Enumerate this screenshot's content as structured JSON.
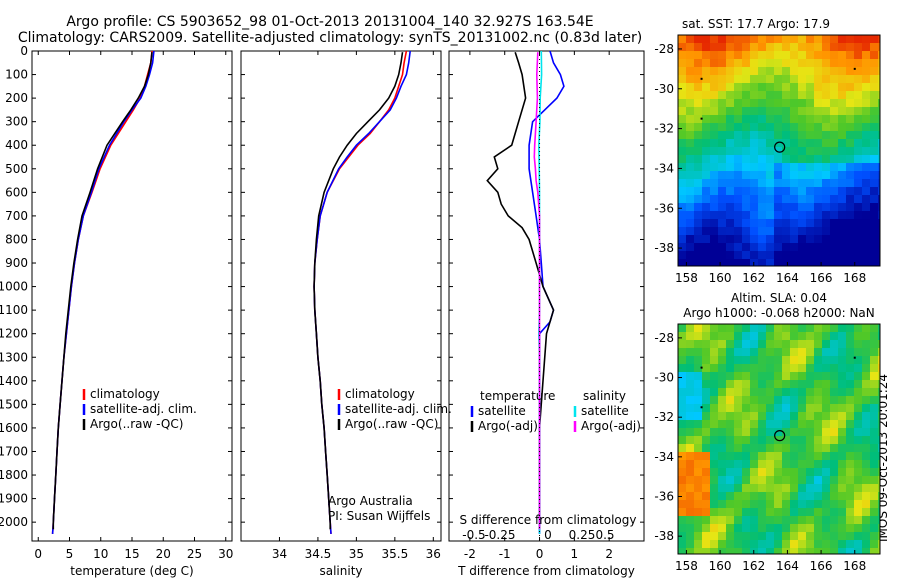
{
  "title_line1": "Argo profile: CS 5903652_98 01-Oct-2013 20131004_140 32.927S 163.54E",
  "title_line2": "Climatology: CARS2009. Satellite-adjusted climatology: synTS_20131002.nc (0.83d later)",
  "stamp": "IMOS 09-Oct-2013 20:01:24",
  "colors": {
    "climatology": "#ff0000",
    "satellite": "#0000ff",
    "argo": "#000000",
    "satellite_salinity": "#00e5ee",
    "argo_salinity_diff": "#ff00ff"
  },
  "chart_data": [
    {
      "type": "line",
      "name": "temperature-profile",
      "xlabel": "temperature (deg C)",
      "xlim": [
        -1,
        31
      ],
      "xticks": [
        0,
        5,
        10,
        15,
        20,
        25,
        30
      ],
      "ylim": [
        2080,
        0
      ],
      "yticks": [
        0,
        100,
        200,
        300,
        400,
        500,
        600,
        700,
        800,
        900,
        1000,
        1100,
        1200,
        1300,
        1400,
        1500,
        1600,
        1700,
        1800,
        1900,
        2000
      ],
      "legend": {
        "position": "lower-center",
        "entries": [
          "climatology",
          "satellite-adj. clim.",
          "Argo(..raw -QC)"
        ]
      },
      "series": [
        {
          "name": "climatology",
          "color": "#ff0000",
          "depth": [
            0,
            50,
            100,
            150,
            200,
            250,
            300,
            400,
            500,
            600,
            700,
            800,
            900,
            1000,
            1100,
            1200,
            1300,
            1400,
            1500,
            1600,
            1700,
            1800,
            1900,
            2000,
            2050
          ],
          "values": [
            18.2,
            18,
            17.5,
            17,
            16.3,
            15.2,
            14,
            11.6,
            9.9,
            8.6,
            7.2,
            6.4,
            5.8,
            5.3,
            4.9,
            4.5,
            4.1,
            3.8,
            3.5,
            3.2,
            3,
            2.8,
            2.6,
            2.4,
            2.3
          ]
        },
        {
          "name": "satellite-adj. clim.",
          "color": "#0000ff",
          "depth": [
            0,
            50,
            100,
            150,
            200,
            250,
            300,
            400,
            500,
            600,
            700,
            800,
            900,
            1000,
            1100,
            1200,
            1300,
            1400,
            1500,
            1600,
            1700,
            1800,
            1900,
            2000,
            2050
          ],
          "values": [
            18.5,
            18.3,
            17.8,
            17.2,
            16.4,
            15,
            13.7,
            11.4,
            9.7,
            8.5,
            7.2,
            6.4,
            5.8,
            5.3,
            4.9,
            4.5,
            4.1,
            3.8,
            3.5,
            3.2,
            3,
            2.8,
            2.6,
            2.4,
            2.3
          ]
        },
        {
          "name": "Argo(..raw -QC)",
          "color": "#000000",
          "depth": [
            5,
            50,
            100,
            150,
            200,
            250,
            300,
            400,
            500,
            600,
            700,
            800,
            900,
            1000,
            1100,
            1200,
            1300,
            1400,
            1500,
            1600,
            1700,
            1800,
            1900,
            2000,
            2030
          ],
          "values": [
            18.2,
            18,
            17.6,
            17,
            16,
            14.8,
            13.5,
            11,
            9.5,
            8.3,
            7,
            6.3,
            5.7,
            5.2,
            4.8,
            4.4,
            4.1,
            3.8,
            3.5,
            3.2,
            3,
            2.8,
            2.6,
            2.4,
            2.4
          ]
        }
      ]
    },
    {
      "type": "line",
      "name": "salinity-profile",
      "xlabel": "salinity",
      "xlim": [
        33.5,
        36.1
      ],
      "xticks": [
        34,
        34.5,
        35,
        35.5,
        36
      ],
      "ylim": [
        2080,
        0
      ],
      "legend": {
        "position": "lower-center",
        "entries": [
          "climatology",
          "satellite-adj. clim.",
          "Argo(..raw -QC)"
        ]
      },
      "annotation_line1": "Argo Australia",
      "annotation_line2": "PI: Susan Wijffels",
      "series": [
        {
          "name": "climatology",
          "color": "#ff0000",
          "depth": [
            0,
            50,
            100,
            150,
            200,
            250,
            300,
            350,
            400,
            450,
            500,
            600,
            700,
            800,
            900,
            1000,
            1100,
            1200,
            1300,
            1400,
            1500,
            1600,
            1700,
            1800,
            1900,
            2000,
            2050
          ],
          "values": [
            35.65,
            35.62,
            35.6,
            35.55,
            35.5,
            35.42,
            35.3,
            35.18,
            35.02,
            34.9,
            34.78,
            34.62,
            34.53,
            34.49,
            34.46,
            34.45,
            34.46,
            34.48,
            34.5,
            34.53,
            34.55,
            34.58,
            34.6,
            34.62,
            34.64,
            34.66,
            34.67
          ]
        },
        {
          "name": "satellite-adj. clim.",
          "color": "#0000ff",
          "depth": [
            0,
            50,
            100,
            150,
            200,
            250,
            300,
            350,
            400,
            450,
            500,
            600,
            700,
            800,
            900,
            1000,
            1100,
            1200,
            1300,
            1400,
            1500,
            1600,
            1700,
            1800,
            1900,
            2000,
            2050
          ],
          "values": [
            35.7,
            35.68,
            35.65,
            35.58,
            35.52,
            35.44,
            35.3,
            35.16,
            35,
            34.88,
            34.77,
            34.62,
            34.53,
            34.49,
            34.46,
            34.45,
            34.46,
            34.48,
            34.5,
            34.53,
            34.55,
            34.58,
            34.6,
            34.62,
            34.64,
            34.66,
            34.67
          ]
        },
        {
          "name": "Argo(..raw -QC)",
          "color": "#000000",
          "depth": [
            5,
            50,
            100,
            150,
            200,
            250,
            300,
            350,
            400,
            450,
            500,
            600,
            700,
            800,
            900,
            1000,
            1100,
            1200,
            1300,
            1400,
            1500,
            1600,
            1700,
            1800,
            1900,
            2000,
            2030
          ],
          "values": [
            35.6,
            35.58,
            35.55,
            35.5,
            35.42,
            35.3,
            35.15,
            35,
            34.88,
            34.78,
            34.7,
            34.58,
            34.51,
            34.48,
            34.46,
            34.45,
            34.46,
            34.48,
            34.5,
            34.53,
            34.55,
            34.58,
            34.6,
            34.62,
            34.64,
            34.66,
            34.66
          ]
        }
      ]
    },
    {
      "type": "line",
      "name": "difference-profile",
      "xlabel": "T difference from climatology",
      "x2label": "S difference from climatology",
      "xlim": [
        -2.6,
        3
      ],
      "xticks": [
        -2,
        -1,
        0,
        1,
        2
      ],
      "x2ticks": [
        -0.5,
        -0.25,
        0,
        0.25,
        0.5
      ],
      "ylim": [
        2080,
        0
      ],
      "legend_temperature": {
        "title": "temperature",
        "entries": [
          "satellite",
          "Argo(-adj)"
        ]
      },
      "legend_salinity": {
        "title": "salinity",
        "entries": [
          "satellite",
          "Argo(-adj)"
        ]
      },
      "series": [
        {
          "name": "temperature satellite",
          "color": "#0000ff",
          "depth": [
            0,
            50,
            100,
            150,
            200,
            300,
            400,
            500,
            600,
            700,
            800,
            900,
            1000,
            1100,
            1150,
            1200,
            1400,
            1600,
            1800,
            2000,
            2050
          ],
          "values": [
            0.3,
            0.4,
            0.6,
            0.7,
            0.5,
            -0.2,
            -0.3,
            -0.3,
            -0.2,
            -0.1,
            0,
            0.05,
            0.1,
            0.4,
            0.3,
            0,
            0,
            0,
            0,
            0,
            0
          ]
        },
        {
          "name": "temperature Argo(-adj)",
          "color": "#000000",
          "depth": [
            5,
            50,
            100,
            200,
            300,
            400,
            450,
            500,
            550,
            600,
            650,
            700,
            750,
            800,
            900,
            1000,
            1100,
            1200,
            1400,
            1600,
            1800,
            2000,
            2030
          ],
          "values": [
            -0.7,
            -0.6,
            -0.5,
            -0.4,
            -0.6,
            -0.8,
            -1.3,
            -1.2,
            -1.5,
            -1.2,
            -1.1,
            -0.9,
            -0.5,
            -0.3,
            -0.1,
            0.1,
            0.4,
            0.2,
            0.1,
            0,
            0,
            0,
            0
          ]
        },
        {
          "name": "salinity satellite",
          "color": "#00e5ee",
          "depth": [
            0,
            100,
            200,
            300,
            400,
            500,
            600,
            700,
            800,
            900,
            1000,
            1100,
            1200,
            1300,
            1400,
            1600,
            1800,
            2000,
            2050
          ],
          "values": [
            0.05,
            0.06,
            0.02,
            0.01,
            -0.02,
            -0.01,
            0,
            0,
            0,
            0,
            0,
            0,
            -0.02,
            0,
            0,
            0,
            0,
            0,
            0
          ]
        },
        {
          "name": "salinity Argo(-adj)",
          "color": "#ff00ff",
          "depth": [
            5,
            100,
            200,
            300,
            350,
            400,
            450,
            500,
            550,
            600,
            700,
            800,
            1000,
            1200,
            1400,
            1600,
            1800,
            2000,
            2030
          ],
          "values": [
            -0.05,
            -0.08,
            -0.06,
            -0.1,
            -0.12,
            -0.14,
            -0.15,
            -0.12,
            -0.1,
            -0.05,
            0,
            0,
            0,
            0,
            0,
            0,
            0,
            0,
            0
          ]
        }
      ]
    },
    {
      "type": "heatmap",
      "name": "sst-map",
      "title": "sat. SST: 17.7 Argo: 17.9",
      "xticks": [
        158,
        160,
        162,
        164,
        166,
        168
      ],
      "yticks": [
        -28,
        -30,
        -32,
        -34,
        -36,
        -38
      ],
      "xlim": [
        157.5,
        169.5
      ],
      "ylim": [
        -38.9,
        -27.3
      ],
      "marker": {
        "lon": 163.54,
        "lat": -32.93
      }
    },
    {
      "type": "heatmap",
      "name": "sla-map",
      "title_line1": "Altim. SLA: 0.04",
      "title_line2": "Argo h1000: -0.068 h2000: NaN",
      "xticks": [
        158,
        160,
        162,
        164,
        166,
        168
      ],
      "yticks": [
        -28,
        -30,
        -32,
        -34,
        -36,
        -38
      ],
      "xlim": [
        157.5,
        169.5
      ],
      "ylim": [
        -38.9,
        -27.3
      ],
      "marker": {
        "lon": 163.54,
        "lat": -32.93
      }
    }
  ]
}
